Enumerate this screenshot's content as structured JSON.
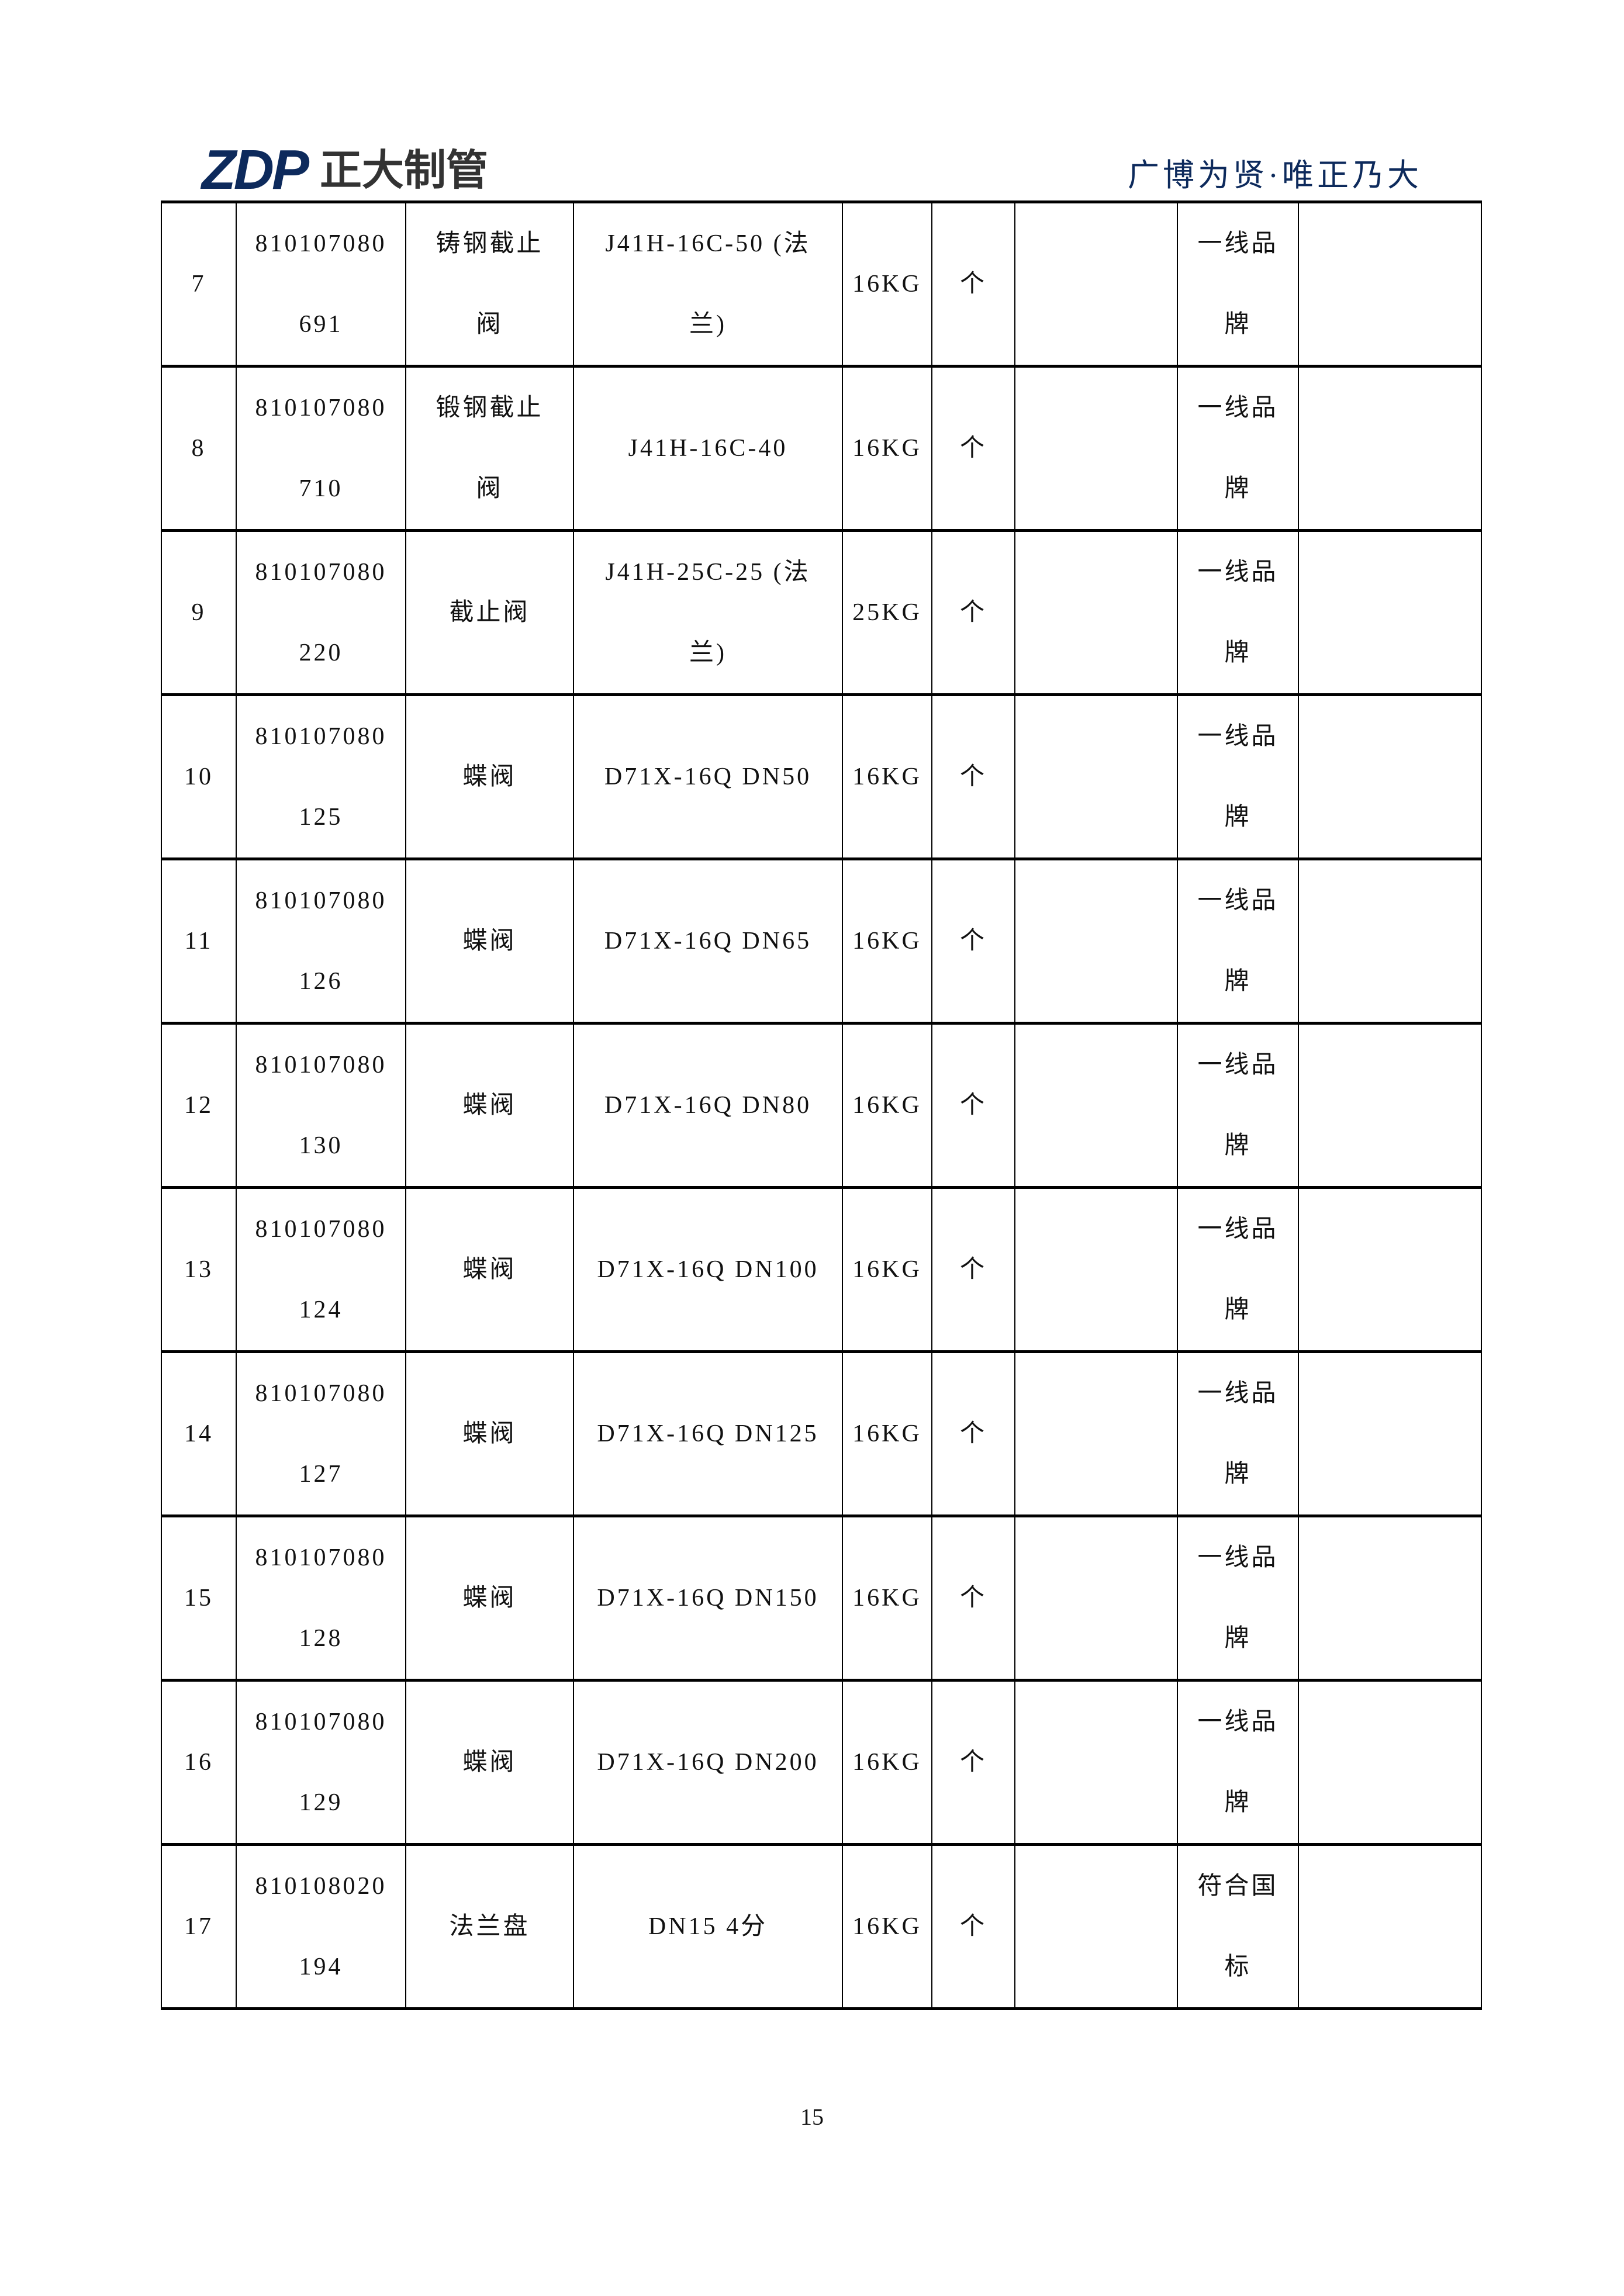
{
  "header": {
    "logo_mark": "ZDP",
    "logo_text": "正大制管",
    "slogan": "广博为贤·唯正乃大",
    "brand_color": "#0d2a5c"
  },
  "rows": [
    {
      "no": "7",
      "code": "810107080691",
      "name": "铸钢截止阀",
      "spec": "J41H-16C-50 (法兰)",
      "pressure": "16KG",
      "unit": "个",
      "brand": "一线品牌"
    },
    {
      "no": "8",
      "code": "810107080710",
      "name": "锻钢截止阀",
      "spec": "J41H-16C-40",
      "pressure": "16KG",
      "unit": "个",
      "brand": "一线品牌"
    },
    {
      "no": "9",
      "code": "810107080220",
      "name": "截止阀",
      "spec": "J41H-25C-25 (法兰)",
      "pressure": "25KG",
      "unit": "个",
      "brand": "一线品牌"
    },
    {
      "no": "10",
      "code": "810107080125",
      "name": "蝶阀",
      "spec": "D71X-16Q DN50",
      "pressure": "16KG",
      "unit": "个",
      "brand": "一线品牌"
    },
    {
      "no": "11",
      "code": "810107080126",
      "name": "蝶阀",
      "spec": "D71X-16Q DN65",
      "pressure": "16KG",
      "unit": "个",
      "brand": "一线品牌"
    },
    {
      "no": "12",
      "code": "810107080130",
      "name": "蝶阀",
      "spec": "D71X-16Q DN80",
      "pressure": "16KG",
      "unit": "个",
      "brand": "一线品牌"
    },
    {
      "no": "13",
      "code": "810107080124",
      "name": "蝶阀",
      "spec": "D71X-16Q DN100",
      "pressure": "16KG",
      "unit": "个",
      "brand": "一线品牌"
    },
    {
      "no": "14",
      "code": "810107080127",
      "name": "蝶阀",
      "spec": "D71X-16Q DN125",
      "pressure": "16KG",
      "unit": "个",
      "brand": "一线品牌"
    },
    {
      "no": "15",
      "code": "810107080128",
      "name": "蝶阀",
      "spec": "D71X-16Q DN150",
      "pressure": "16KG",
      "unit": "个",
      "brand": "一线品牌"
    },
    {
      "no": "16",
      "code": "810107080129",
      "name": "蝶阀",
      "spec": "D71X-16Q DN200",
      "pressure": "16KG",
      "unit": "个",
      "brand": "一线品牌"
    },
    {
      "no": "17",
      "code": "810108020194",
      "name": "法兰盘",
      "spec": "DN15  4分",
      "pressure": "16KG",
      "unit": "个",
      "brand": "符合国标"
    }
  ],
  "footer": {
    "page_number": "15"
  }
}
